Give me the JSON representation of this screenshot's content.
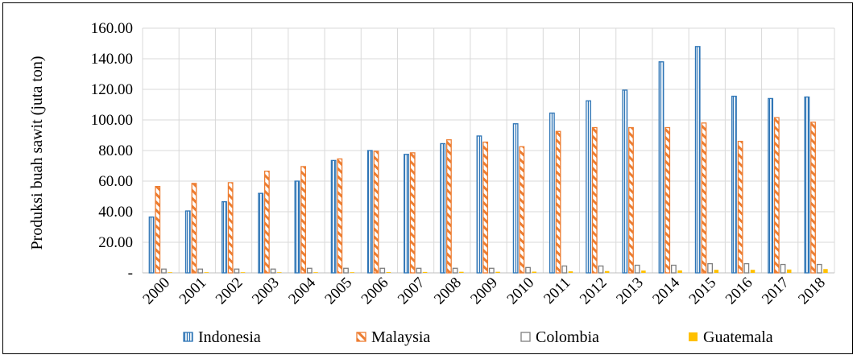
{
  "chart_data": {
    "type": "bar",
    "ylabel": "Produksi buah sawit (juta ton)",
    "xlabel": "",
    "title": "",
    "categories": [
      "2000",
      "2001",
      "2002",
      "2003",
      "2004",
      "2005",
      "2006",
      "2007",
      "2008",
      "2009",
      "2010",
      "2011",
      "2012",
      "2013",
      "2014",
      "2015",
      "2016",
      "2017",
      "2018"
    ],
    "y_ticks": [
      "-",
      "20.00",
      "40.00",
      "60.00",
      "80.00",
      "100.00",
      "120.00",
      "140.00",
      "160.00"
    ],
    "ylim": [
      0,
      160
    ],
    "grid": true,
    "legend_position": "bottom",
    "series": [
      {
        "name": "Indonesia",
        "color": "#2E75B6",
        "pattern": "vertical-lines",
        "values": [
          36.5,
          40.5,
          46.5,
          52.0,
          60.0,
          73.5,
          80.0,
          77.5,
          84.5,
          89.5,
          97.5,
          104.5,
          112.5,
          119.5,
          138.0,
          148.0,
          115.5,
          114.0,
          115.0
        ]
      },
      {
        "name": "Malaysia",
        "color": "#ED7D31",
        "pattern": "diagonal-hatch",
        "values": [
          56.5,
          58.5,
          59.0,
          66.5,
          69.5,
          74.5,
          79.5,
          78.5,
          87.0,
          85.5,
          82.5,
          92.5,
          95.0,
          95.0,
          95.0,
          98.0,
          86.0,
          101.5,
          98.5
        ]
      },
      {
        "name": "Colombia",
        "color": "#7F7F7F",
        "pattern": "outline",
        "values": [
          2.5,
          2.5,
          2.5,
          2.5,
          3.0,
          3.0,
          3.0,
          3.0,
          3.0,
          3.0,
          3.5,
          4.5,
          4.5,
          5.0,
          5.0,
          6.0,
          6.0,
          5.5,
          5.5
        ]
      },
      {
        "name": "Guatemala",
        "color": "#FFC000",
        "pattern": "solid",
        "values": [
          0.2,
          0.2,
          0.3,
          0.3,
          0.4,
          0.4,
          0.5,
          0.6,
          0.7,
          0.7,
          0.8,
          1.0,
          1.2,
          1.5,
          1.6,
          2.0,
          2.0,
          2.2,
          2.5
        ]
      }
    ]
  }
}
